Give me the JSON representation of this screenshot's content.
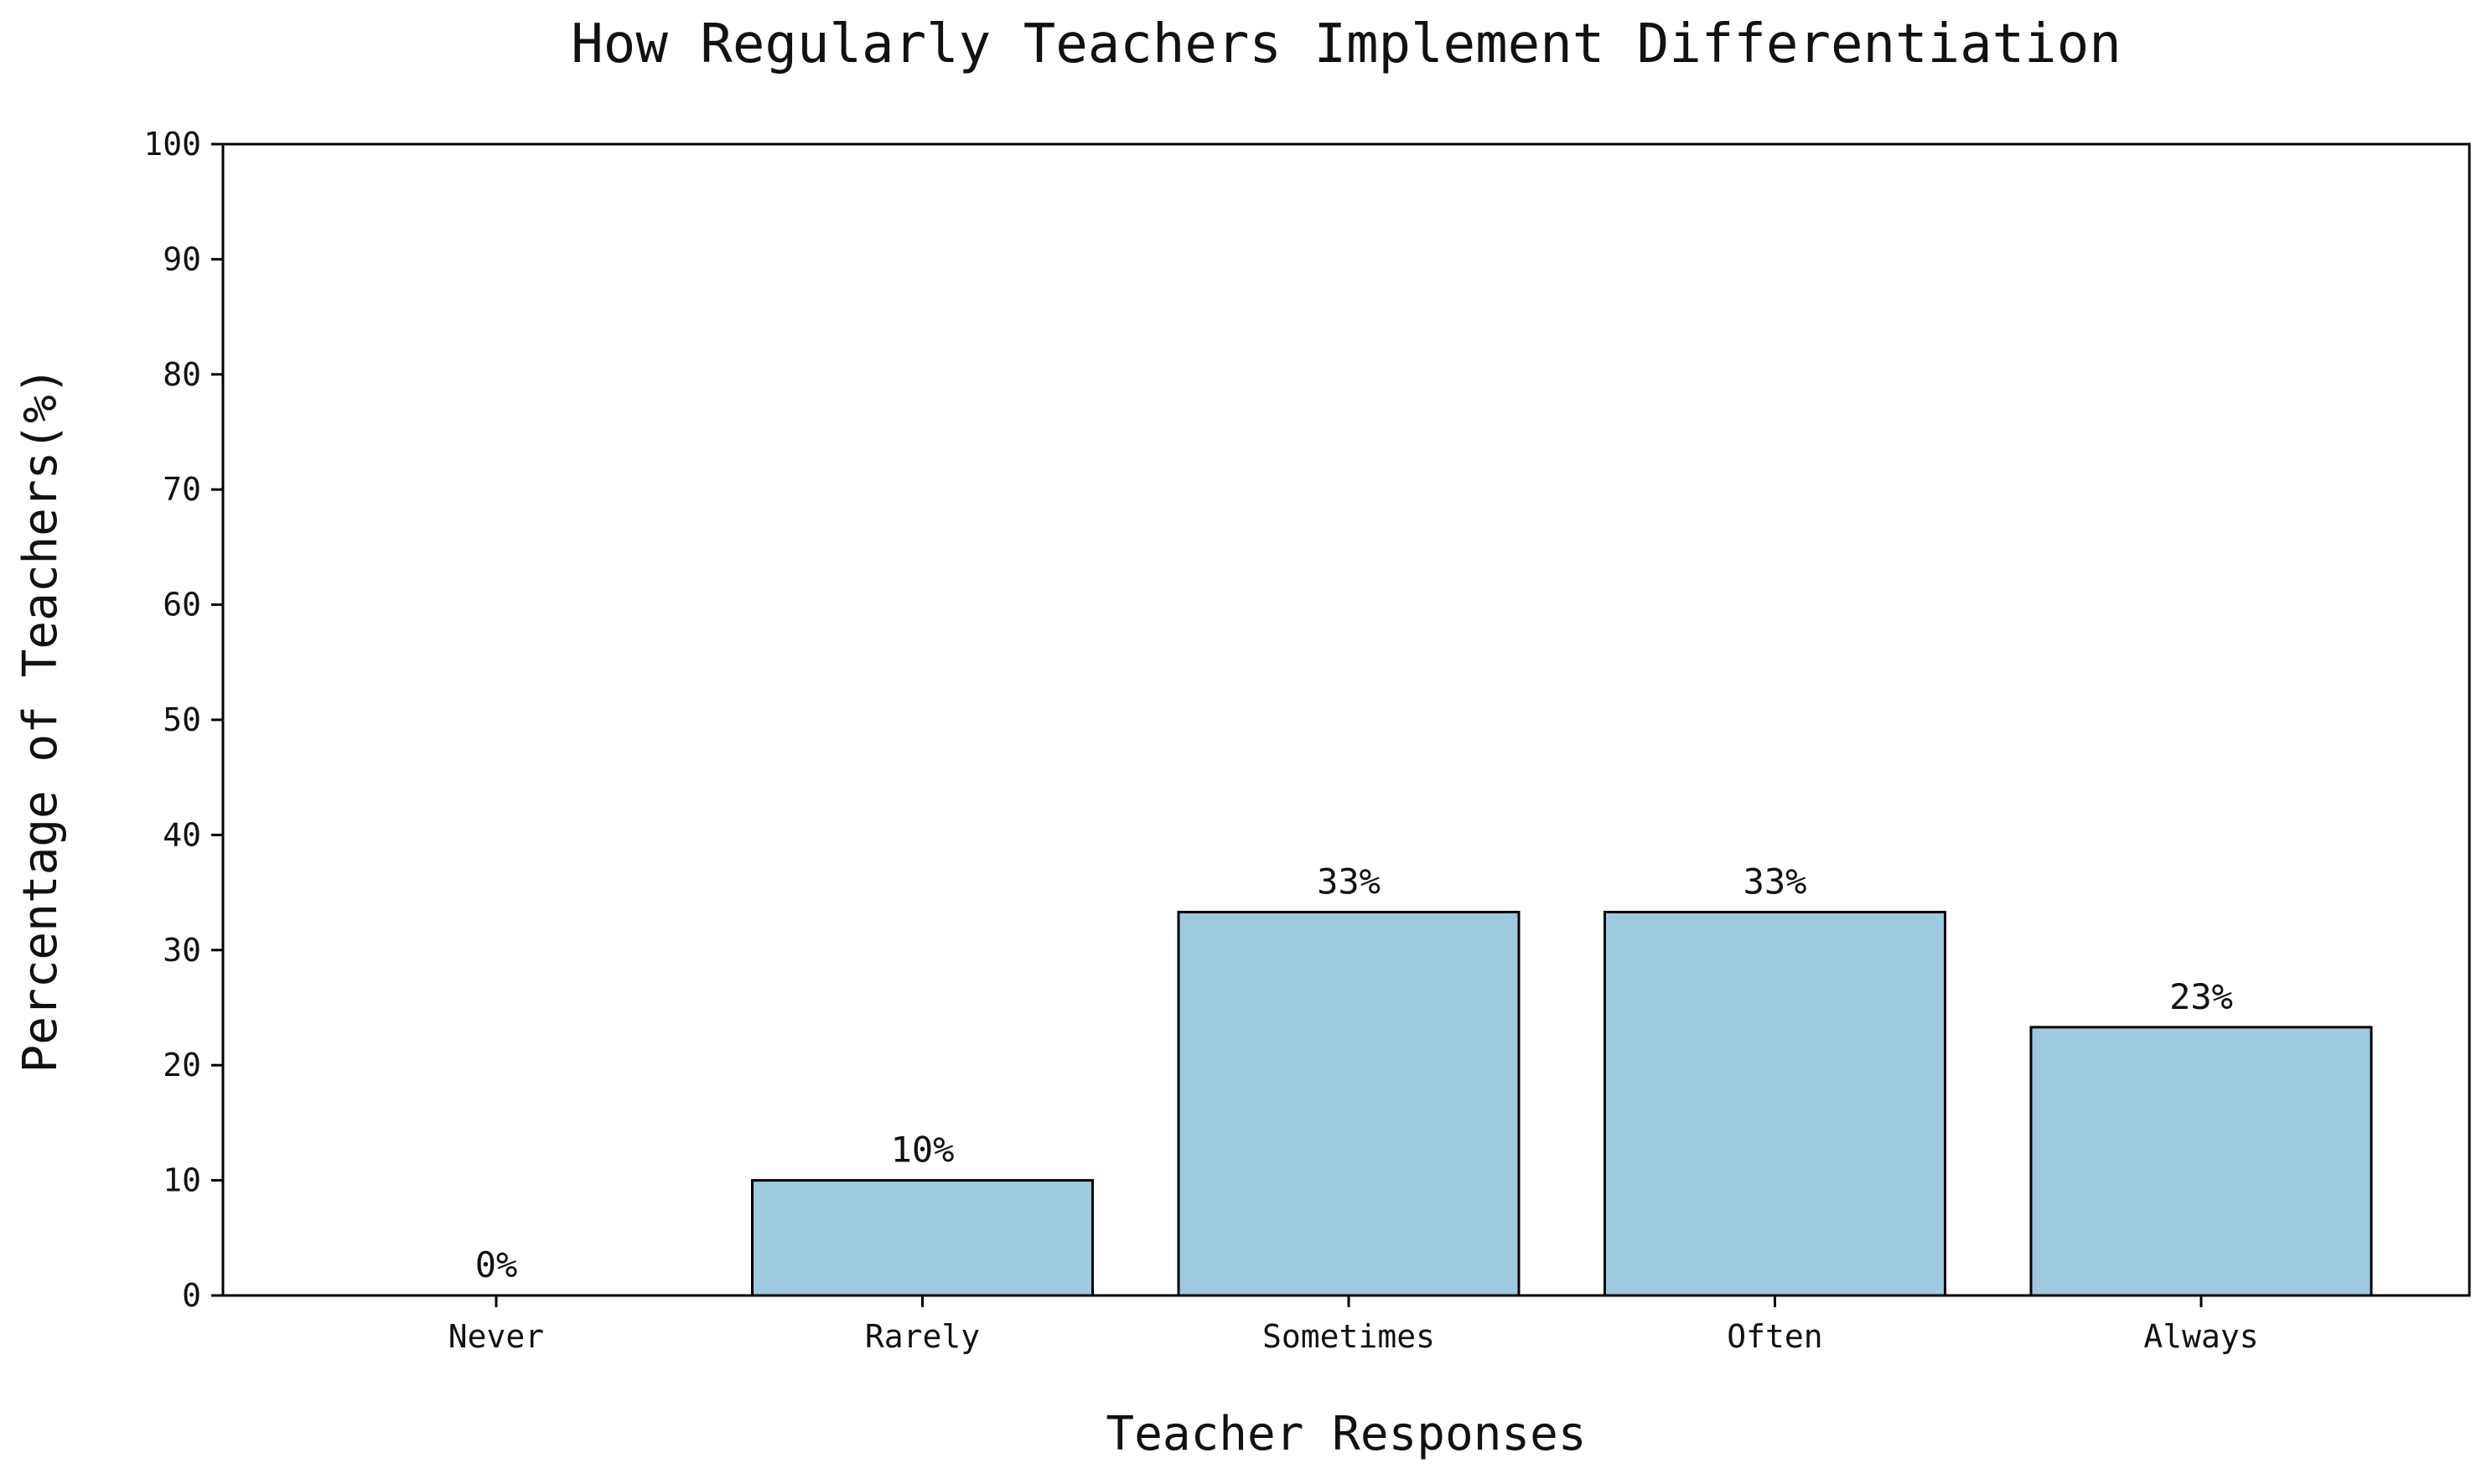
{
  "chart_data": {
    "type": "bar",
    "title": "How Regularly Teachers Implement Differentiation",
    "xlabel": "Teacher Responses",
    "ylabel": "Percentage of Teachers(%)",
    "categories": [
      "Never",
      "Rarely",
      "Sometimes",
      "Often",
      "Always"
    ],
    "values": [
      0,
      10,
      33.3,
      33.3,
      23.3
    ],
    "data_labels": [
      "0%",
      "10%",
      "33%",
      "33%",
      "23%"
    ],
    "ylim": [
      0,
      100
    ],
    "yticks": [
      0,
      10,
      20,
      30,
      40,
      50,
      60,
      70,
      80,
      90,
      100
    ],
    "ytick_labels": [
      "0",
      "10",
      "20",
      "30",
      "40",
      "50",
      "60",
      "70",
      "80",
      "90",
      "100"
    ],
    "grid": false,
    "legend": "none",
    "colors": {
      "bar_fill": "#9ecae1",
      "bar_edge": "#000000",
      "axis": "#000000",
      "text": "#111111"
    }
  }
}
